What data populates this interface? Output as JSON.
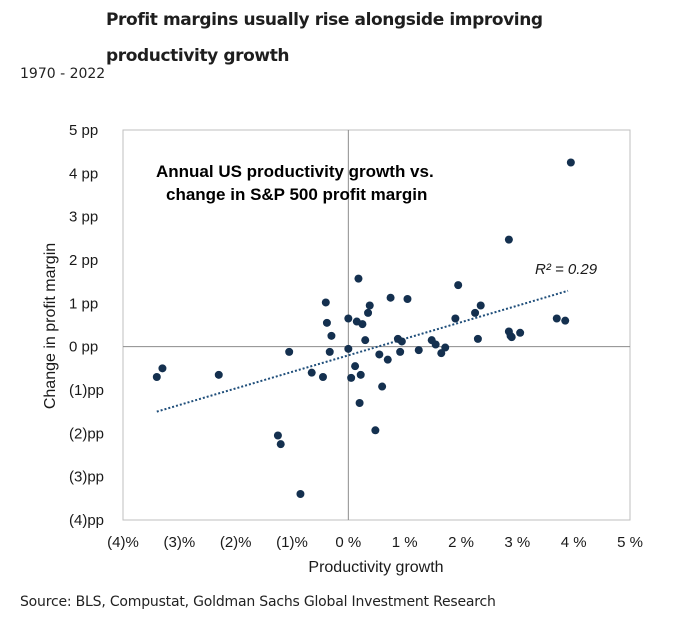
{
  "title": "Profit margins usually rise alongside improving productivity growth",
  "subtitle": "1970 - 2022",
  "source": "Source: BLS, Compustat, Goldman Sachs Global Investment Research",
  "chart_data": {
    "type": "scatter",
    "title": "Annual US productivity growth vs.",
    "title_line2": "change in S&P 500 profit margin",
    "xlabel": "Productivity growth",
    "ylabel": "Change in profit margin",
    "xlim": [
      -4,
      5
    ],
    "ylim": [
      -4,
      5
    ],
    "x_ticks": [
      -4,
      -3,
      -2,
      -1,
      0,
      1,
      2,
      3,
      4,
      5
    ],
    "x_tick_labels": [
      "(4)%",
      "(3)%",
      "(2)%",
      "(1)%",
      "0 %",
      "1 %",
      "2 %",
      "3 %",
      "4 %",
      "5 %"
    ],
    "y_ticks": [
      5,
      4,
      3,
      2,
      1,
      0,
      -1,
      -2,
      -3,
      -4
    ],
    "y_tick_labels": [
      "5 pp",
      "4 pp",
      "3 pp",
      "2 pp",
      "1 pp",
      "0 pp",
      "(1)pp",
      "(2)pp",
      "(3)pp",
      "(4)pp"
    ],
    "annotation": "R² = 0.29",
    "point_color": "#14304f",
    "trend_color": "#1f4e7a",
    "trendline": {
      "slope": 0.382,
      "intercept": -0.2,
      "x_range": [
        -3.4,
        3.9
      ]
    },
    "points": [
      {
        "x": -3.4,
        "y": -0.7
      },
      {
        "x": -3.3,
        "y": -0.5
      },
      {
        "x": -2.3,
        "y": -0.65
      },
      {
        "x": -1.25,
        "y": -2.05
      },
      {
        "x": -1.2,
        "y": -2.25
      },
      {
        "x": -1.05,
        "y": -0.12
      },
      {
        "x": -0.85,
        "y": -3.4
      },
      {
        "x": -0.65,
        "y": -0.6
      },
      {
        "x": -0.45,
        "y": -0.7
      },
      {
        "x": -0.4,
        "y": 1.02
      },
      {
        "x": -0.38,
        "y": 0.55
      },
      {
        "x": -0.33,
        "y": -0.12
      },
      {
        "x": -0.3,
        "y": 0.25
      },
      {
        "x": 0.0,
        "y": -0.05
      },
      {
        "x": 0.0,
        "y": 0.65
      },
      {
        "x": 0.05,
        "y": -0.72
      },
      {
        "x": 0.12,
        "y": -0.45
      },
      {
        "x": 0.15,
        "y": 0.58
      },
      {
        "x": 0.18,
        "y": 1.57
      },
      {
        "x": 0.2,
        "y": -1.3
      },
      {
        "x": 0.22,
        "y": -0.65
      },
      {
        "x": 0.25,
        "y": 0.52
      },
      {
        "x": 0.3,
        "y": 0.15
      },
      {
        "x": 0.35,
        "y": 0.78
      },
      {
        "x": 0.38,
        "y": 0.95
      },
      {
        "x": 0.48,
        "y": -1.93
      },
      {
        "x": 0.55,
        "y": -0.18
      },
      {
        "x": 0.6,
        "y": -0.92
      },
      {
        "x": 0.7,
        "y": -0.3
      },
      {
        "x": 0.75,
        "y": 1.13
      },
      {
        "x": 0.88,
        "y": 0.18
      },
      {
        "x": 0.92,
        "y": -0.12
      },
      {
        "x": 0.95,
        "y": 0.12
      },
      {
        "x": 1.05,
        "y": 1.1
      },
      {
        "x": 1.25,
        "y": -0.08
      },
      {
        "x": 1.48,
        "y": 0.15
      },
      {
        "x": 1.55,
        "y": 0.05
      },
      {
        "x": 1.65,
        "y": -0.15
      },
      {
        "x": 1.72,
        "y": -0.02
      },
      {
        "x": 1.9,
        "y": 0.65
      },
      {
        "x": 1.95,
        "y": 1.42
      },
      {
        "x": 2.25,
        "y": 0.78
      },
      {
        "x": 2.3,
        "y": 0.18
      },
      {
        "x": 2.35,
        "y": 0.95
      },
      {
        "x": 2.85,
        "y": 2.47
      },
      {
        "x": 2.85,
        "y": 0.35
      },
      {
        "x": 2.88,
        "y": 0.25
      },
      {
        "x": 2.9,
        "y": 0.22
      },
      {
        "x": 3.05,
        "y": 0.32
      },
      {
        "x": 3.7,
        "y": 0.65
      },
      {
        "x": 3.85,
        "y": 0.6
      },
      {
        "x": 3.95,
        "y": 4.25
      }
    ]
  }
}
